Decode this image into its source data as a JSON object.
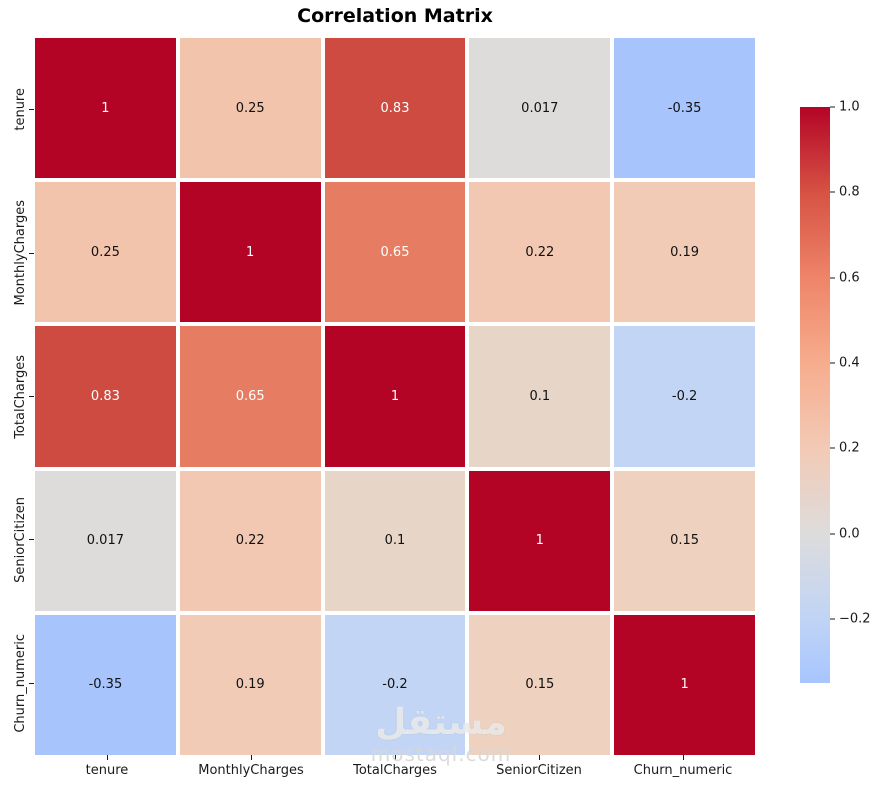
{
  "title": "Correlation Matrix",
  "watermark": {
    "arabic": "مستقل",
    "domain": "mostaql.com"
  },
  "chart_data": {
    "type": "heatmap",
    "title": "Correlation Matrix",
    "colormap": "coolwarm",
    "vmin": -0.35,
    "vmax": 1.0,
    "categories": [
      "tenure",
      "MonthlyCharges",
      "TotalCharges",
      "SeniorCitizen",
      "Churn_numeric"
    ],
    "rows": [
      "tenure",
      "MonthlyCharges",
      "TotalCharges",
      "SeniorCitizen",
      "Churn_numeric"
    ],
    "matrix": [
      [
        1,
        0.25,
        0.83,
        0.017,
        -0.35
      ],
      [
        0.25,
        1,
        0.65,
        0.22,
        0.19
      ],
      [
        0.83,
        0.65,
        1,
        0.1,
        -0.2
      ],
      [
        0.017,
        0.22,
        0.1,
        1,
        0.15
      ],
      [
        -0.35,
        0.19,
        -0.2,
        0.15,
        1
      ]
    ],
    "annotations": [
      [
        "1",
        "0.25",
        "0.83",
        "0.017",
        "-0.35"
      ],
      [
        "0.25",
        "1",
        "0.65",
        "0.22",
        "0.19"
      ],
      [
        "0.83",
        "0.65",
        "1",
        "0.1",
        "-0.2"
      ],
      [
        "0.017",
        "0.22",
        "0.1",
        "1",
        "0.15"
      ],
      [
        "-0.35",
        "0.19",
        "-0.2",
        "0.15",
        "1"
      ]
    ],
    "cell_colors": [
      [
        "#b40426",
        "#f2c4ac",
        "#cd4b41",
        "#dedcdb",
        "#a7c4fd"
      ],
      [
        "#f2c4ac",
        "#b40426",
        "#e67c62",
        "#f2c8b2",
        "#f2cbb7"
      ],
      [
        "#cd4b41",
        "#e67c62",
        "#b40426",
        "#e7d5c8",
        "#c2d5f4"
      ],
      [
        "#dedcdb",
        "#f2c8b2",
        "#e7d5c8",
        "#b40426",
        "#eed1bf"
      ],
      [
        "#a7c4fd",
        "#f2cbb7",
        "#c2d5f4",
        "#eed1bf",
        "#b40426"
      ]
    ],
    "annot_color_dark": "#111111",
    "annot_color_light": "#ffffff",
    "grid_line_color": "#ffffff",
    "colorbar": {
      "ticks": [
        {
          "label": "1.0",
          "value": 1.0
        },
        {
          "label": "0.8",
          "value": 0.8
        },
        {
          "label": "0.6",
          "value": 0.6
        },
        {
          "label": "0.4",
          "value": 0.4
        },
        {
          "label": "0.2",
          "value": 0.2
        },
        {
          "label": "0.0",
          "value": 0.0
        },
        {
          "label": "−0.2",
          "value": -0.2
        }
      ],
      "gradient_stops": [
        {
          "pos": 0,
          "color": "#a7c5fe"
        },
        {
          "pos": 11.1,
          "color": "#c0d4f5"
        },
        {
          "pos": 25.9,
          "color": "#dddcdc"
        },
        {
          "pos": 40.7,
          "color": "#f2cab5"
        },
        {
          "pos": 55.6,
          "color": "#f7ac8e"
        },
        {
          "pos": 70.4,
          "color": "#ee8468"
        },
        {
          "pos": 85.2,
          "color": "#d65244"
        },
        {
          "pos": 100,
          "color": "#b40426"
        }
      ]
    }
  }
}
